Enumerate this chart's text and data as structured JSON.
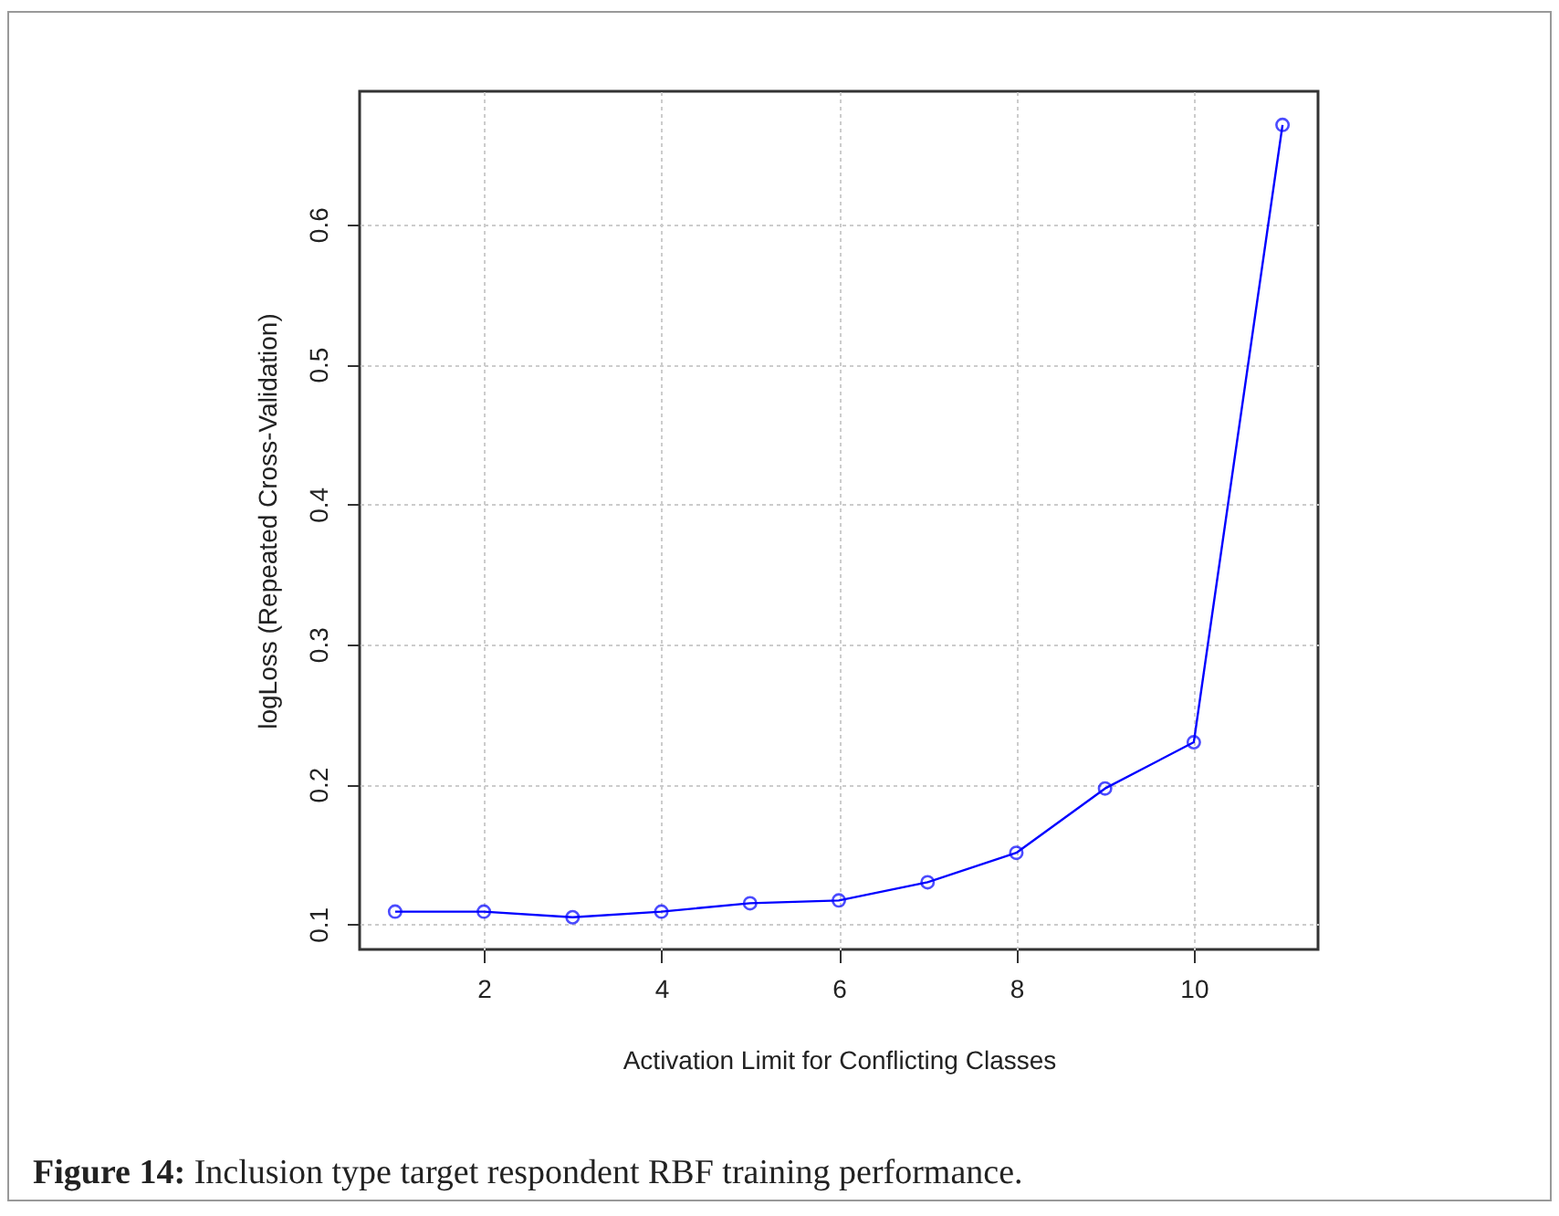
{
  "chart_data": {
    "type": "line",
    "xlabel": "Activation Limit for Conflicting Classes",
    "ylabel": "logLoss (Repeated Cross-Validation)",
    "x": [
      1,
      2,
      3,
      4,
      5,
      6,
      7,
      8,
      9,
      10,
      11
    ],
    "series": [
      {
        "color": "#0000ff",
        "values": [
          0.109,
          0.109,
          0.105,
          0.109,
          0.115,
          0.117,
          0.13,
          0.151,
          0.197,
          0.23,
          0.671
        ]
      }
    ],
    "xlim": [
      0.6,
      11.4
    ],
    "xticks": [
      2,
      4,
      6,
      8,
      10
    ],
    "ylim": [
      0.082,
      0.695
    ],
    "yticks": [
      0.1,
      0.2,
      0.3,
      0.4,
      0.5,
      0.6
    ],
    "grid": true,
    "marker": "circle",
    "line_style": "solid",
    "annotations": [
      "Figure 14: Inclusion type target respondent RBF training performance."
    ]
  }
}
